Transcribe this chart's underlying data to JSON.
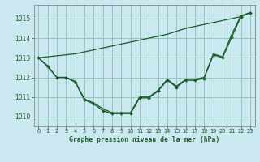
{
  "title": "Graphe pression niveau de la mer (hPa)",
  "background_color": "#cbe8f0",
  "plot_bg_color": "#cbe8f0",
  "grid_color": "#92c8b8",
  "line_color": "#1a5c2a",
  "marker_color": "#1a5c2a",
  "xlim": [
    -0.5,
    23.5
  ],
  "ylim": [
    1009.5,
    1015.7
  ],
  "yticks": [
    1010,
    1011,
    1012,
    1013,
    1014,
    1015
  ],
  "xticks": [
    0,
    1,
    2,
    3,
    4,
    5,
    6,
    7,
    8,
    9,
    10,
    11,
    12,
    13,
    14,
    15,
    16,
    17,
    18,
    19,
    20,
    21,
    22,
    23
  ],
  "series_straight": [
    1013.0,
    1013.05,
    1013.1,
    1013.15,
    1013.2,
    1013.3,
    1013.4,
    1013.5,
    1013.6,
    1013.7,
    1013.8,
    1013.9,
    1014.0,
    1014.1,
    1014.2,
    1014.35,
    1014.5,
    1014.6,
    1014.7,
    1014.8,
    1014.9,
    1015.0,
    1015.1,
    1015.3
  ],
  "series_upper": [
    1013.0,
    1012.6,
    1012.0,
    1012.0,
    1011.8,
    1010.9,
    1010.7,
    1010.4,
    1010.2,
    1010.2,
    1010.2,
    1011.0,
    1011.0,
    1011.35,
    1011.9,
    1011.55,
    1011.9,
    1011.9,
    1012.0,
    1013.2,
    1013.05,
    1014.2,
    1015.15,
    1015.3
  ],
  "series_lower": [
    1013.0,
    1012.55,
    1012.0,
    1012.0,
    1011.75,
    1010.85,
    1010.65,
    1010.3,
    1010.15,
    1010.15,
    1010.15,
    1010.95,
    1010.95,
    1011.3,
    1011.85,
    1011.5,
    1011.85,
    1011.85,
    1011.95,
    1013.15,
    1013.0,
    1014.05,
    1015.1,
    1015.3
  ]
}
